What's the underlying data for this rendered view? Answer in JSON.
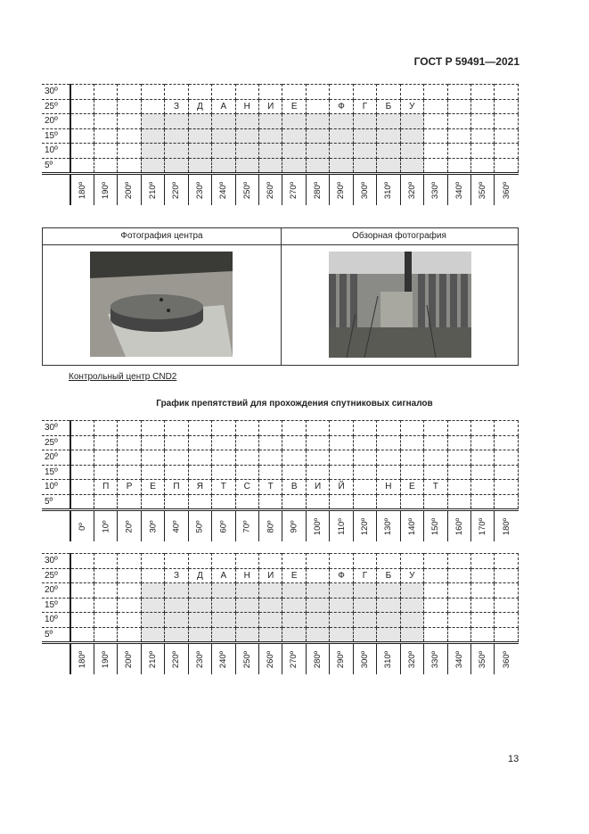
{
  "header": {
    "doc_id": "ГОСТ Р 59491—2021"
  },
  "photo_table": {
    "left_header": "Фотография центра",
    "right_header": "Обзорная фотография"
  },
  "caption": "Контрольный центр CND2",
  "chart_title": "График препятствий для прохождения спутниковых сигналов",
  "elevations": [
    "30º",
    "25º",
    "20º",
    "15º",
    "10º",
    "5º"
  ],
  "grids": [
    {
      "azimuths": [
        "180º",
        "190º",
        "200º",
        "210º",
        "220º",
        "230º",
        "240º",
        "250º",
        "260º",
        "270º",
        "280º",
        "290º",
        "300º",
        "310º",
        "320º",
        "330º",
        "340º",
        "350º",
        "360º"
      ],
      "text_row": "25º",
      "letters": [
        "",
        "",
        "",
        "",
        "З",
        "Д",
        "А",
        "Н",
        "И",
        "Е",
        "",
        "Ф",
        "Г",
        "Б",
        "У",
        "",
        "",
        "",
        ""
      ],
      "shaded_azimuth_range": [
        "210º",
        "330º"
      ],
      "shaded_elevations": [
        "20º",
        "15º",
        "10º",
        "5º"
      ]
    },
    {
      "azimuths": [
        "0º",
        "10º",
        "20º",
        "30º",
        "40º",
        "50º",
        "60º",
        "70º",
        "80º",
        "90º",
        "100º",
        "110º",
        "120º",
        "130º",
        "140º",
        "150º",
        "160º",
        "170º",
        "180º"
      ],
      "text_row": "10º",
      "letters": [
        "",
        "П",
        "Р",
        "Е",
        "П",
        "Я",
        "Т",
        "С",
        "Т",
        "В",
        "И",
        "Й",
        "",
        "Н",
        "Е",
        "Т",
        "",
        "",
        ""
      ],
      "shaded_azimuth_range": null,
      "shaded_elevations": []
    },
    {
      "azimuths": [
        "180º",
        "190º",
        "200º",
        "210º",
        "220º",
        "230º",
        "240º",
        "250º",
        "260º",
        "270º",
        "280º",
        "290º",
        "300º",
        "310º",
        "320º",
        "330º",
        "340º",
        "350º",
        "360º"
      ],
      "text_row": "25º",
      "letters": [
        "",
        "",
        "",
        "",
        "З",
        "Д",
        "А",
        "Н",
        "И",
        "Е",
        "",
        "Ф",
        "Г",
        "Б",
        "У",
        "",
        "",
        "",
        ""
      ],
      "shaded_azimuth_range": [
        "210º",
        "330º"
      ],
      "shaded_elevations": [
        "20º",
        "15º",
        "10º",
        "5º"
      ]
    }
  ],
  "page_number": "13"
}
